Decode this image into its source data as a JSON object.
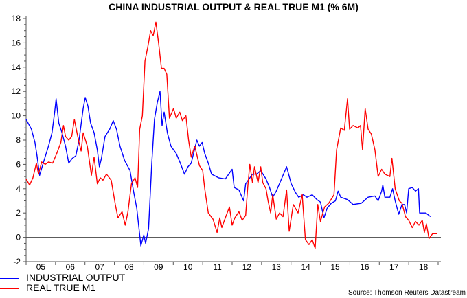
{
  "chart_data": {
    "type": "line",
    "title": "CHINA INDUSTRIAL OUTPUT & REAL TRUE M1 (% 6M)",
    "xlabel": "",
    "ylabel": "",
    "xlim": [
      2005,
      2019
    ],
    "ylim": [
      -2,
      18
    ],
    "yticks": [
      "-2",
      "0",
      "2",
      "4",
      "6",
      "8",
      "10",
      "12",
      "14",
      "16",
      "18"
    ],
    "ytick_values": [
      -2,
      0,
      2,
      4,
      6,
      8,
      10,
      12,
      14,
      16,
      18
    ],
    "xtick_labels": [
      "05",
      "06",
      "07",
      "08",
      "09",
      "10",
      "11",
      "12",
      "13",
      "14",
      "15",
      "16",
      "17",
      "18"
    ],
    "grid": false,
    "zero_line": true,
    "legend_position": "bottom-left",
    "source": "Source: Thomson Reuters Datastream",
    "series": [
      {
        "name": "INDUSTRIAL OUTPUT",
        "color": "#0000ff",
        "x": [
          2005.0,
          2005.18,
          2005.3,
          2005.37,
          2005.46,
          2005.58,
          2005.76,
          2005.88,
          2005.97,
          2006.02,
          2006.11,
          2006.22,
          2006.34,
          2006.45,
          2006.57,
          2006.69,
          2006.8,
          2006.94,
          2007.01,
          2007.1,
          2007.19,
          2007.31,
          2007.42,
          2007.49,
          2007.56,
          2007.68,
          2007.84,
          2007.96,
          2008.07,
          2008.19,
          2008.35,
          2008.53,
          2008.65,
          2008.76,
          2008.86,
          2008.9,
          2009.0,
          2009.06,
          2009.16,
          2009.27,
          2009.36,
          2009.46,
          2009.55,
          2009.62,
          2009.69,
          2009.8,
          2009.92,
          2010.1,
          2010.24,
          2010.38,
          2010.5,
          2010.61,
          2010.8,
          2010.89,
          2010.98,
          2011.07,
          2011.19,
          2011.3,
          2011.54,
          2011.77,
          2012.0,
          2012.07,
          2012.23,
          2012.39,
          2012.46,
          2012.69,
          2012.83,
          2012.97,
          2013.15,
          2013.27,
          2013.38,
          2013.5,
          2013.66,
          2013.85,
          2014.01,
          2014.15,
          2014.26,
          2014.42,
          2014.54,
          2014.72,
          2014.88,
          2015.0,
          2015.12,
          2015.23,
          2015.37,
          2015.51,
          2015.6,
          2015.69,
          2015.92,
          2016.11,
          2016.39,
          2016.62,
          2016.85,
          2016.96,
          2017.08,
          2017.12,
          2017.19,
          2017.36,
          2017.45,
          2017.54,
          2017.66,
          2017.77,
          2017.86,
          2017.93,
          2018.0,
          2018.12,
          2018.23,
          2018.33,
          2018.37,
          2018.58,
          2018.74
        ],
        "y": [
          9.7,
          8.9,
          7.8,
          6.7,
          5.1,
          6.1,
          7.5,
          8.6,
          10.3,
          11.4,
          9.4,
          8.6,
          7.5,
          6.1,
          6.5,
          6.7,
          8.0,
          10.6,
          11.5,
          10.8,
          9.4,
          8.6,
          7.2,
          5.8,
          6.5,
          8.3,
          8.9,
          9.6,
          8.9,
          7.5,
          6.3,
          5.5,
          3.8,
          2.4,
          0.2,
          -0.7,
          0.2,
          -0.5,
          0.7,
          6.1,
          9.7,
          11.1,
          12.0,
          9.2,
          10.3,
          8.6,
          7.5,
          6.9,
          6.1,
          5.2,
          5.8,
          6.1,
          8.0,
          7.5,
          7.8,
          6.9,
          6.1,
          5.2,
          4.9,
          4.8,
          5.6,
          4.1,
          3.9,
          3.0,
          4.4,
          5.2,
          5.2,
          5.5,
          4.8,
          4.1,
          3.3,
          3.8,
          4.7,
          5.8,
          4.4,
          3.7,
          3.3,
          3.5,
          3.3,
          3.5,
          3.1,
          2.9,
          1.6,
          2.4,
          2.8,
          3.0,
          3.8,
          3.3,
          3.1,
          2.7,
          2.8,
          3.3,
          3.4,
          3.0,
          3.8,
          4.3,
          3.3,
          3.3,
          4.0,
          3.0,
          1.9,
          2.7,
          2.7,
          2.0,
          4.0,
          4.1,
          3.8,
          4.0,
          2.0,
          2.0,
          1.7
        ]
      },
      {
        "name": "REAL TRUE M1",
        "color": "#ff0000",
        "x": [
          2005.0,
          2005.12,
          2005.23,
          2005.35,
          2005.42,
          2005.53,
          2005.65,
          2005.76,
          2005.9,
          2006.04,
          2006.18,
          2006.27,
          2006.34,
          2006.45,
          2006.55,
          2006.64,
          2006.73,
          2006.8,
          2006.87,
          2006.94,
          2007.08,
          2007.22,
          2007.31,
          2007.42,
          2007.52,
          2007.61,
          2007.73,
          2007.89,
          2008.03,
          2008.12,
          2008.26,
          2008.37,
          2008.46,
          2008.58,
          2008.7,
          2008.79,
          2008.86,
          2008.95,
          2009.04,
          2009.13,
          2009.23,
          2009.32,
          2009.41,
          2009.5,
          2009.6,
          2009.69,
          2009.78,
          2009.87,
          2010.01,
          2010.1,
          2010.22,
          2010.31,
          2010.43,
          2010.52,
          2010.61,
          2010.73,
          2010.89,
          2011.0,
          2011.07,
          2011.19,
          2011.35,
          2011.49,
          2011.58,
          2011.65,
          2011.77,
          2011.91,
          2012.0,
          2012.09,
          2012.23,
          2012.34,
          2012.46,
          2012.53,
          2012.6,
          2012.69,
          2012.76,
          2012.88,
          2012.97,
          2013.04,
          2013.15,
          2013.22,
          2013.31,
          2013.38,
          2013.5,
          2013.61,
          2013.73,
          2013.85,
          2013.94,
          2014.08,
          2014.24,
          2014.38,
          2014.49,
          2014.61,
          2014.72,
          2014.82,
          2014.91,
          2015.0,
          2015.14,
          2015.28,
          2015.46,
          2015.55,
          2015.69,
          2015.81,
          2015.92,
          2015.99,
          2016.11,
          2016.27,
          2016.36,
          2016.43,
          2016.52,
          2016.62,
          2016.73,
          2016.85,
          2016.96,
          2017.08,
          2017.19,
          2017.36,
          2017.43,
          2017.54,
          2017.68,
          2017.77,
          2017.89,
          2018.0,
          2018.12,
          2018.23,
          2018.35,
          2018.46,
          2018.53,
          2018.6,
          2018.69,
          2018.81,
          2018.97
        ],
        "y": [
          4.8,
          4.3,
          4.9,
          6.1,
          5.2,
          6.2,
          6.0,
          6.2,
          6.1,
          6.9,
          7.8,
          9.2,
          8.3,
          8.0,
          8.3,
          9.7,
          8.6,
          7.8,
          7.1,
          8.6,
          7.5,
          5.1,
          6.6,
          4.4,
          4.9,
          4.7,
          5.2,
          4.7,
          2.7,
          1.6,
          2.1,
          1.0,
          2.1,
          4.4,
          4.9,
          4.1,
          8.9,
          10.0,
          14.5,
          15.6,
          17.0,
          16.6,
          17.7,
          16.0,
          13.9,
          13.9,
          13.4,
          9.8,
          10.6,
          9.8,
          10.3,
          9.6,
          10.0,
          8.0,
          6.6,
          7.5,
          5.9,
          5.5,
          4.0,
          2.0,
          1.5,
          0.4,
          1.6,
          0.8,
          1.6,
          2.5,
          1.0,
          1.6,
          2.1,
          1.4,
          1.8,
          4.1,
          6.0,
          4.5,
          5.8,
          4.5,
          5.8,
          4.5,
          4.0,
          3.0,
          2.0,
          3.5,
          1.5,
          2.0,
          1.7,
          3.9,
          0.5,
          2.7,
          2.0,
          3.5,
          -0.2,
          -0.6,
          -0.2,
          -0.9,
          2.7,
          1.3,
          2.5,
          2.8,
          3.5,
          7.2,
          9.0,
          8.8,
          11.4,
          8.9,
          9.2,
          9.0,
          9.2,
          7.2,
          10.6,
          8.9,
          8.5,
          7.2,
          5.0,
          5.6,
          5.2,
          5.0,
          6.5,
          4.0,
          3.0,
          2.8,
          1.7,
          1.4,
          0.8,
          1.3,
          1.0,
          1.4,
          0.4,
          1.1,
          -0.1,
          0.3,
          0.3
        ]
      }
    ]
  }
}
